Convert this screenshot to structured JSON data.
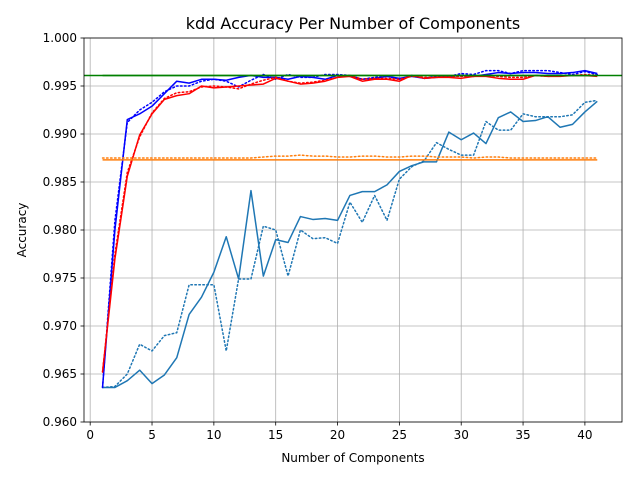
{
  "chart_data": {
    "type": "line",
    "title": "kdd Accuracy Per Number of Components",
    "xlabel": "Number of Components",
    "ylabel": "Accuracy",
    "xlim": [
      -0.5,
      43
    ],
    "ylim": [
      0.96,
      1.0
    ],
    "xticks": [
      0,
      5,
      10,
      15,
      20,
      25,
      30,
      35,
      40
    ],
    "yticks": [
      0.96,
      0.965,
      0.97,
      0.975,
      0.98,
      0.985,
      0.99,
      0.995,
      1.0
    ],
    "xtick_labels": [
      "0",
      "5",
      "10",
      "15",
      "20",
      "25",
      "30",
      "35",
      "40"
    ],
    "ytick_labels": [
      "0.960",
      "0.965",
      "0.970",
      "0.975",
      "0.980",
      "0.985",
      "0.990",
      "0.995",
      "1.000"
    ],
    "grid": true,
    "legend": "none",
    "x": [
      1,
      2,
      3,
      4,
      5,
      6,
      7,
      8,
      9,
      10,
      11,
      12,
      13,
      14,
      15,
      16,
      17,
      18,
      19,
      20,
      21,
      22,
      23,
      24,
      25,
      26,
      27,
      28,
      29,
      30,
      31,
      32,
      33,
      34,
      35,
      36,
      37,
      38,
      39,
      40,
      41
    ],
    "series": [
      {
        "color": "#1f77b4",
        "style": "solid",
        "values": [
          0.9636,
          0.9636,
          0.9643,
          0.9654,
          0.964,
          0.9649,
          0.9667,
          0.9712,
          0.973,
          0.9756,
          0.9793,
          0.9749,
          0.9841,
          0.9752,
          0.979,
          0.9787,
          0.9814,
          0.9811,
          0.9812,
          0.981,
          0.9836,
          0.984,
          0.984,
          0.9847,
          0.9861,
          0.9867,
          0.9871,
          0.9871,
          0.9902,
          0.9894,
          0.9901,
          0.989,
          0.9917,
          0.9923,
          0.9913,
          0.9914,
          0.9918,
          0.9907,
          0.991,
          0.9923,
          0.9934
        ]
      },
      {
        "color": "#1f77b4",
        "style": "dotted",
        "values": [
          0.9636,
          0.9637,
          0.965,
          0.9681,
          0.9674,
          0.969,
          0.9693,
          0.9743,
          0.9743,
          0.9743,
          0.9674,
          0.9749,
          0.9749,
          0.9804,
          0.98,
          0.9752,
          0.98,
          0.9791,
          0.9792,
          0.9786,
          0.9829,
          0.9808,
          0.9836,
          0.981,
          0.9853,
          0.9866,
          0.9872,
          0.9891,
          0.9884,
          0.9878,
          0.9878,
          0.9913,
          0.9904,
          0.9904,
          0.9921,
          0.9918,
          0.9918,
          0.9918,
          0.992,
          0.9933,
          0.9935
        ]
      },
      {
        "color": "#0000ff",
        "style": "solid",
        "values": [
          0.9636,
          0.98,
          0.9915,
          0.9921,
          0.9929,
          0.9942,
          0.9955,
          0.9953,
          0.9957,
          0.9957,
          0.9956,
          0.9959,
          0.9961,
          0.9959,
          0.9959,
          0.9957,
          0.996,
          0.9959,
          0.9957,
          0.9961,
          0.996,
          0.9957,
          0.9958,
          0.996,
          0.9958,
          0.996,
          0.9958,
          0.9959,
          0.996,
          0.9961,
          0.996,
          0.9962,
          0.9964,
          0.9963,
          0.9964,
          0.9964,
          0.9963,
          0.9963,
          0.9964,
          0.9966,
          0.9963
        ]
      },
      {
        "color": "#0000ff",
        "style": "dotted",
        "values": [
          0.9636,
          0.981,
          0.9912,
          0.9925,
          0.9933,
          0.9944,
          0.995,
          0.995,
          0.9955,
          0.9957,
          0.9955,
          0.9949,
          0.9956,
          0.9962,
          0.9957,
          0.9962,
          0.9959,
          0.9959,
          0.9962,
          0.9962,
          0.9961,
          0.9957,
          0.9959,
          0.996,
          0.9957,
          0.9961,
          0.9958,
          0.996,
          0.996,
          0.9963,
          0.9962,
          0.9966,
          0.9966,
          0.9963,
          0.9966,
          0.9966,
          0.9966,
          0.9964,
          0.9962,
          0.9965,
          0.9962
        ]
      },
      {
        "color": "#ff0000",
        "style": "solid",
        "values": [
          0.9652,
          0.977,
          0.9856,
          0.9899,
          0.9921,
          0.9936,
          0.994,
          0.9942,
          0.995,
          0.9948,
          0.9949,
          0.995,
          0.9951,
          0.9952,
          0.9958,
          0.9955,
          0.9952,
          0.9953,
          0.9955,
          0.9959,
          0.996,
          0.9955,
          0.9957,
          0.9957,
          0.9955,
          0.9961,
          0.9958,
          0.9959,
          0.9959,
          0.9958,
          0.996,
          0.996,
          0.9958,
          0.9957,
          0.9957,
          0.9961,
          0.996,
          0.996,
          0.9961,
          0.9961,
          0.996
        ]
      },
      {
        "color": "#ff0000",
        "style": "dotted",
        "values": [
          0.9652,
          0.9775,
          0.986,
          0.9897,
          0.9922,
          0.9937,
          0.9943,
          0.9944,
          0.9949,
          0.995,
          0.9949,
          0.9947,
          0.9952,
          0.9956,
          0.9959,
          0.9955,
          0.9953,
          0.9954,
          0.9956,
          0.9959,
          0.9961,
          0.9957,
          0.9958,
          0.9958,
          0.9957,
          0.996,
          0.9959,
          0.9959,
          0.996,
          0.996,
          0.996,
          0.9961,
          0.996,
          0.9959,
          0.9959,
          0.9961,
          0.996,
          0.9961,
          0.9961,
          0.9962,
          0.9961
        ]
      },
      {
        "color": "#ff7f0e",
        "style": "solid",
        "values": [
          0.9873,
          0.9873,
          0.9873,
          0.9873,
          0.9873,
          0.9873,
          0.9873,
          0.9873,
          0.9873,
          0.9873,
          0.9873,
          0.9873,
          0.9873,
          0.9873,
          0.9873,
          0.9873,
          0.9873,
          0.9873,
          0.9873,
          0.9873,
          0.9873,
          0.9873,
          0.9873,
          0.9873,
          0.9873,
          0.9873,
          0.9873,
          0.9873,
          0.9873,
          0.9873,
          0.9873,
          0.9873,
          0.9873,
          0.9873,
          0.9873,
          0.9873,
          0.9873,
          0.9873,
          0.9873,
          0.9873,
          0.9873
        ]
      },
      {
        "color": "#ff7f0e",
        "style": "dotted",
        "values": [
          0.9875,
          0.9875,
          0.9875,
          0.9875,
          0.9875,
          0.9875,
          0.9875,
          0.9875,
          0.9875,
          0.9875,
          0.9875,
          0.9875,
          0.9875,
          0.9876,
          0.9877,
          0.9877,
          0.9878,
          0.9877,
          0.9877,
          0.9876,
          0.9876,
          0.9877,
          0.9877,
          0.9876,
          0.9876,
          0.9877,
          0.9877,
          0.9876,
          0.9876,
          0.9876,
          0.9875,
          0.9876,
          0.9876,
          0.9875,
          0.9875,
          0.9875,
          0.9875,
          0.9875,
          0.9875,
          0.9875,
          0.9875
        ]
      },
      {
        "color": "#008000",
        "style": "solid",
        "values": [
          0.9961,
          0.9961,
          0.9961,
          0.9961,
          0.9961,
          0.9961,
          0.9961,
          0.9961,
          0.9961,
          0.9961,
          0.9961,
          0.9961,
          0.9961,
          0.9961,
          0.9961,
          0.9961,
          0.9961,
          0.9961,
          0.9961,
          0.9961,
          0.9961,
          0.9961,
          0.9961,
          0.9961,
          0.9961,
          0.9961,
          0.9961,
          0.9961,
          0.9961,
          0.9961,
          0.9961,
          0.9961,
          0.9961,
          0.9961,
          0.9961,
          0.9961,
          0.9961,
          0.9961,
          0.9961,
          0.9961,
          0.9961
        ]
      }
    ],
    "reference_lines": [
      {
        "orientation": "horizontal",
        "y": 0.9961,
        "x_from": -0.5,
        "x_to": 43,
        "color": "#008000"
      }
    ]
  }
}
